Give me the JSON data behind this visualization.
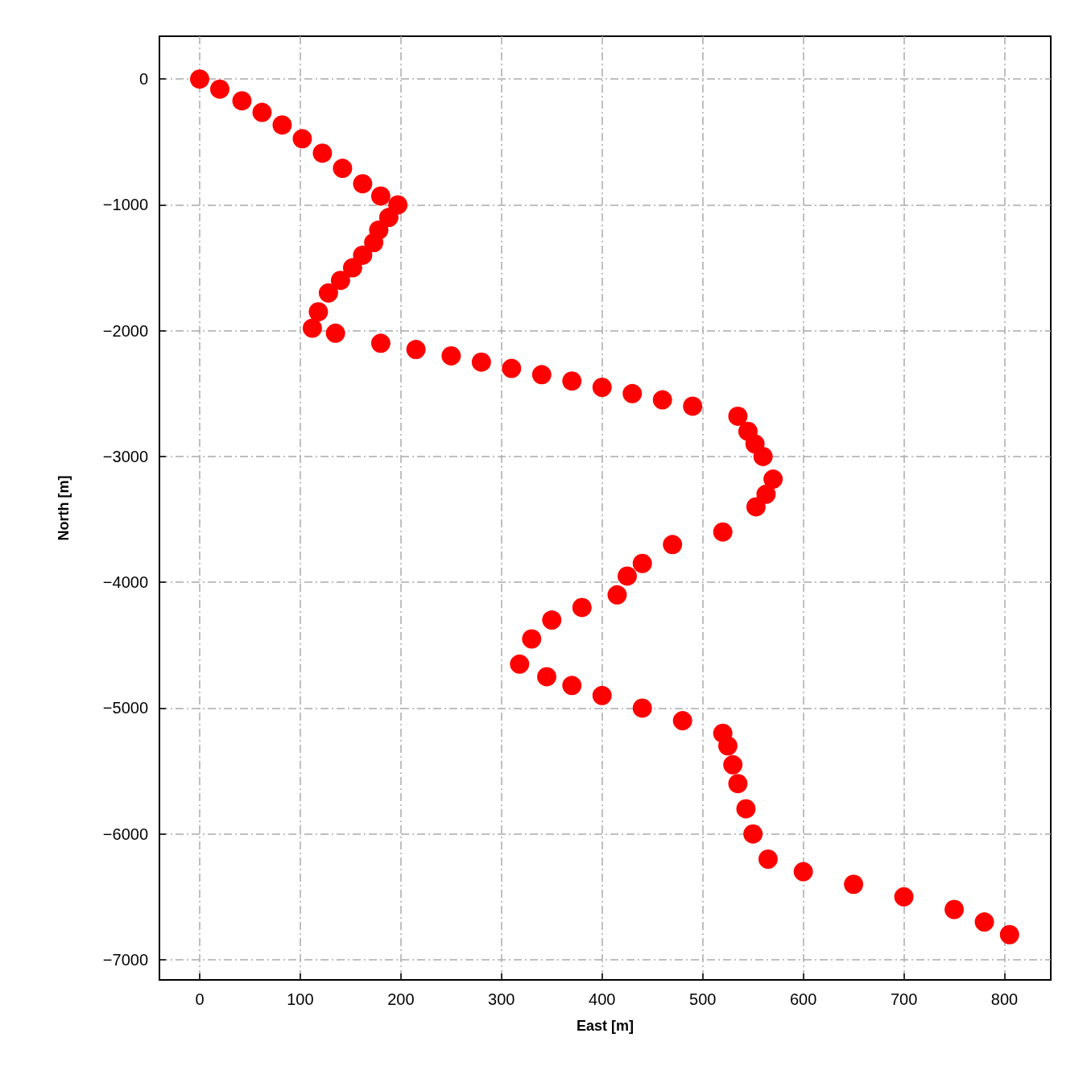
{
  "chart_data": {
    "type": "scatter",
    "xlabel": "East [m]",
    "ylabel": "North [m]",
    "series": [
      {
        "color": "#ff0000",
        "x": [
          0,
          20,
          42,
          62,
          82,
          102,
          122,
          142,
          162,
          180,
          197,
          188,
          178,
          173,
          162,
          152,
          140,
          128,
          118,
          112,
          135,
          180,
          215,
          250,
          280,
          310,
          340,
          370,
          400,
          430,
          460,
          490,
          535,
          545,
          552,
          560,
          570,
          563,
          553,
          520,
          470,
          440,
          425,
          415,
          380,
          350,
          330,
          318,
          345,
          370,
          400,
          440,
          480,
          520,
          525,
          530,
          535,
          543,
          550,
          565,
          600,
          650,
          700,
          750,
          780,
          805
        ],
        "values": [
          0,
          -80,
          -173,
          -265,
          -365,
          -475,
          -589,
          -710,
          -832,
          -930,
          -1000,
          -1100,
          -1200,
          -1300,
          -1400,
          -1500,
          -1600,
          -1700,
          -1850,
          -1980,
          -2020,
          -2100,
          -2150,
          -2200,
          -2250,
          -2300,
          -2350,
          -2400,
          -2450,
          -2500,
          -2550,
          -2600,
          -2680,
          -2800,
          -2900,
          -3000,
          -3180,
          -3300,
          -3400,
          -3600,
          -3700,
          -3850,
          -3950,
          -4100,
          -4200,
          -4300,
          -4450,
          -4650,
          -4750,
          -4820,
          -4900,
          -5000,
          -5100,
          -5200,
          -5300,
          -5450,
          -5600,
          -5800,
          -6000,
          -6200,
          -6300,
          -6400,
          -6500,
          -6600,
          -6700,
          -6800
        ]
      }
    ],
    "marker": "circle",
    "grid": true,
    "xlim": [
      -40,
      846
    ],
    "xticks": [
      0,
      100,
      200,
      300,
      400,
      500,
      600,
      700,
      800
    ],
    "ylim": [
      -7160,
      340
    ],
    "yticks": [
      0,
      -1000,
      -2000,
      -3000,
      -4000,
      -5000,
      -6000,
      -7000
    ]
  }
}
